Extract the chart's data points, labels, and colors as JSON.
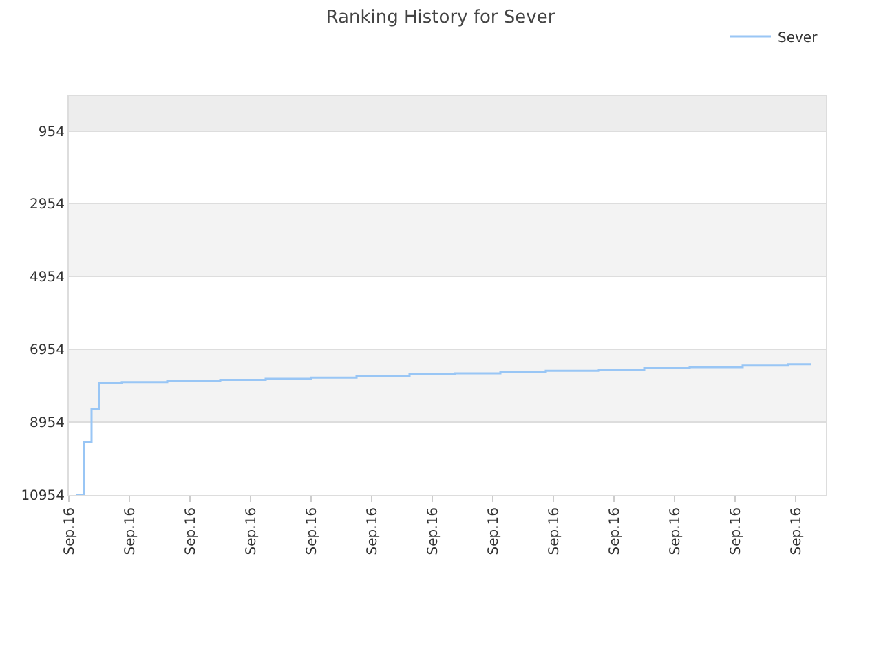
{
  "chart_data": {
    "type": "step",
    "title": "Ranking History for Sever",
    "categories": [
      "Sep.16",
      null,
      null,
      null,
      null,
      null,
      null,
      null,
      "Sep.16",
      null,
      null,
      null,
      null,
      null,
      null,
      null,
      "Sep.16",
      null,
      null,
      null,
      null,
      null,
      null,
      null,
      "Sep.16",
      null,
      null,
      null,
      null,
      null,
      null,
      null,
      "Sep.16",
      null,
      null,
      null,
      null,
      null,
      null,
      null,
      "Sep.16",
      null,
      null,
      null,
      null,
      null,
      null,
      null,
      "Sep.16",
      null,
      null,
      null,
      null,
      null,
      null,
      null,
      "Sep.16",
      null,
      null,
      null,
      null,
      null,
      null,
      null,
      "Sep.16",
      null,
      null,
      null,
      null,
      null,
      null,
      null,
      "Sep.16",
      null,
      null,
      null,
      null,
      null,
      null,
      null,
      "Sep.16",
      null,
      null,
      null,
      null,
      null,
      null,
      null,
      "Sep.16",
      null,
      null,
      null,
      null,
      null,
      null,
      null,
      "Sep.16",
      null,
      null,
      null,
      null
    ],
    "series": [
      {
        "name": "Sever",
        "color": "#99c6f5",
        "values": [
          null,
          10950,
          9500,
          8590,
          7870,
          7870,
          7870,
          7850,
          7850,
          7850,
          7850,
          7850,
          7850,
          7820,
          7820,
          7820,
          7820,
          7820,
          7820,
          7820,
          7790,
          7790,
          7790,
          7790,
          7790,
          7790,
          7760,
          7760,
          7760,
          7760,
          7760,
          7760,
          7730,
          7730,
          7730,
          7730,
          7730,
          7730,
          7690,
          7690,
          7690,
          7690,
          7690,
          7690,
          7690,
          7630,
          7630,
          7630,
          7630,
          7630,
          7630,
          7610,
          7610,
          7610,
          7610,
          7610,
          7610,
          7580,
          7580,
          7580,
          7580,
          7580,
          7580,
          7540,
          7540,
          7540,
          7540,
          7540,
          7540,
          7540,
          7510,
          7510,
          7510,
          7510,
          7510,
          7510,
          7470,
          7470,
          7470,
          7470,
          7470,
          7470,
          7440,
          7440,
          7440,
          7440,
          7440,
          7440,
          7440,
          7400,
          7400,
          7400,
          7400,
          7400,
          7400,
          7360,
          7360,
          7360,
          7360,
          null,
          null
        ]
      }
    ],
    "ylim": [
      10954,
      0
    ],
    "yticks": [
      954,
      2954,
      4954,
      6954,
      8954,
      10954
    ],
    "bands": [
      {
        "axis": "y",
        "from": 0,
        "to": 954,
        "color": "#ededed"
      },
      {
        "axis": "y",
        "from": 2954,
        "to": 4954,
        "color": "#f3f3f3"
      },
      {
        "axis": "y",
        "from": 6954,
        "to": 8954,
        "color": "#f3f3f3"
      }
    ],
    "grid": "y",
    "legend": "top right",
    "marker": "none",
    "line_style": "solid"
  }
}
